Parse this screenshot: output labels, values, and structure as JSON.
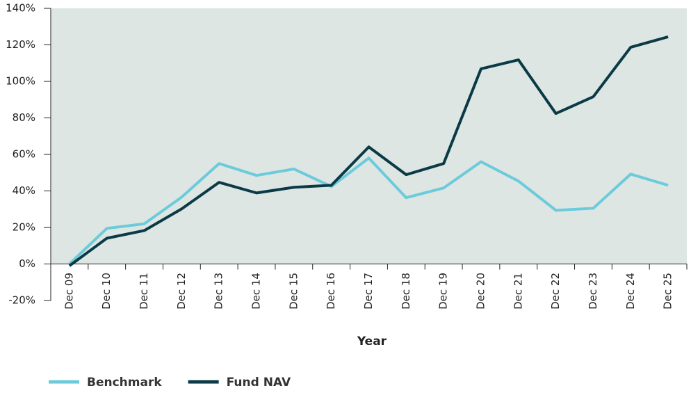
{
  "chart_data": {
    "type": "line",
    "xlabel": "Year",
    "categories": [
      "Dec 09",
      "Dec 10",
      "Dec 11",
      "Dec 12",
      "Dec 13",
      "Dec 14",
      "Dec 15",
      "Dec 16",
      "Dec 17",
      "Dec 18",
      "Dec 19",
      "Dec 20",
      "Dec 21",
      "Dec 22",
      "Dec 23",
      "Dec 24",
      "Dec 25"
    ],
    "series": [
      {
        "name": "Benchmark",
        "color": "#6ccbdb",
        "values": [
          0,
          19.5,
          22,
          36.6,
          55,
          48.5,
          52,
          42.4,
          58,
          36.3,
          41.6,
          56,
          45.4,
          29.4,
          30.5,
          49.2,
          43.1
        ]
      },
      {
        "name": "Fund NAV",
        "color": "#0b3a47",
        "values": [
          -1,
          14.1,
          18.3,
          30.2,
          44.7,
          38.9,
          42,
          43.1,
          64.1,
          48.9,
          55,
          106.9,
          111.8,
          82.4,
          91.6,
          118.7,
          124.4
        ]
      }
    ],
    "ylim": [
      -20,
      140
    ],
    "yticks": [
      {
        "value": -20,
        "label": "-20%"
      },
      {
        "value": 0,
        "label": "0%"
      },
      {
        "value": 20,
        "label": "20%"
      },
      {
        "value": 40,
        "label": "40%"
      },
      {
        "value": 60,
        "label": "60%"
      },
      {
        "value": 80,
        "label": "80%"
      },
      {
        "value": 100,
        "label": "100%"
      },
      {
        "value": 120,
        "label": "120%"
      },
      {
        "value": 140,
        "label": "140%"
      }
    ],
    "legend": "bottom-left"
  }
}
